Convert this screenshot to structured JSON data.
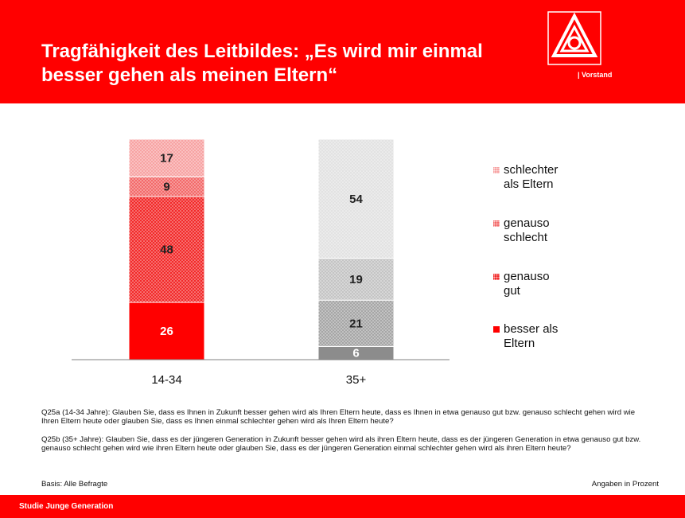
{
  "header": {
    "title": "Tragfähigkeit des Leitbildes: „Es wird mir einmal besser gehen als meinen Eltern“",
    "logo_caption": "| Vorstand"
  },
  "chart_data": {
    "type": "bar",
    "stacked": true,
    "categories": [
      "14-34",
      "35+"
    ],
    "series": [
      {
        "name": "besser als Eltern",
        "colors": [
          "#ff0000",
          "#8c8c8c"
        ],
        "texture": "none",
        "label_color": "#ffffff",
        "values": [
          26,
          6
        ]
      },
      {
        "name": "genauso gut",
        "colors": [
          "#f22a2a",
          "#a6a6a6"
        ],
        "texture": "dots",
        "label_color": "#222222",
        "values": [
          48,
          21
        ]
      },
      {
        "name": "genauso schlecht",
        "colors": [
          "#f36a6a",
          "#c4c4c4"
        ],
        "texture": "dots",
        "label_color": "#222222",
        "values": [
          9,
          19
        ]
      },
      {
        "name": "schlechter als Eltern",
        "colors": [
          "#f7a3a3",
          "#e2e2e2"
        ],
        "texture": "dots",
        "label_color": "#222222",
        "values": [
          17,
          54
        ]
      }
    ],
    "legend": "right"
  },
  "notes": [
    "Q25a (14-34 Jahre): Glauben Sie, dass es Ihnen in Zukunft besser gehen wird als Ihren Eltern heute, dass es Ihnen in etwa genauso gut bzw. genauso schlecht gehen wird wie Ihren Eltern heute oder glauben Sie, dass es Ihnen einmal schlechter gehen wird als Ihren Eltern heute?",
    "Q25b (35+ Jahre): Glauben Sie, dass es der jüngeren Generation in Zukunft besser gehen wird als ihren Eltern heute, dass es der jüngeren Generation in etwa genauso gut bzw. genauso schlecht gehen wird wie ihren Eltern heute oder glauben Sie, dass es der jüngeren Generation einmal schlechter gehen wird als ihren Eltern heute?"
  ],
  "basis": "Basis: Alle Befragte",
  "unit_note": "Angaben in Prozent",
  "footer": "Studie Junge Generation"
}
